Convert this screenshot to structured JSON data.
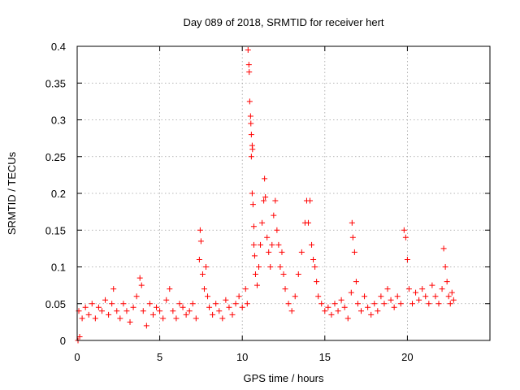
{
  "chart_data": {
    "type": "scatter",
    "title": "Day 089 of 2018, SRMTID for receiver hert",
    "xlabel": "GPS time / hours",
    "ylabel": "SRMTID / TECUs",
    "xlim": [
      0,
      25
    ],
    "ylim": [
      0,
      0.4
    ],
    "xticks": [
      0,
      5,
      10,
      15,
      20
    ],
    "xtick_labels": [
      "0",
      "5",
      "10",
      "15",
      "20"
    ],
    "yticks": [
      0,
      0.05,
      0.1,
      0.15,
      0.2,
      0.25,
      0.3,
      0.35,
      0.4
    ],
    "ytick_labels": [
      "0",
      "0.05",
      "0.1",
      "0.15",
      "0.2",
      "0.25",
      "0.3",
      "0.35",
      "0.4"
    ],
    "grid": true,
    "marker": "+",
    "marker_color": "#ff0000",
    "series": [
      {
        "name": "SRMTID",
        "points": [
          [
            0.05,
            0.0
          ],
          [
            0.1,
            0.04
          ],
          [
            0.15,
            0.005
          ],
          [
            0.3,
            0.03
          ],
          [
            0.5,
            0.045
          ],
          [
            0.7,
            0.035
          ],
          [
            0.9,
            0.05
          ],
          [
            1.1,
            0.03
          ],
          [
            1.3,
            0.045
          ],
          [
            1.5,
            0.04
          ],
          [
            1.7,
            0.055
          ],
          [
            1.9,
            0.035
          ],
          [
            2.1,
            0.05
          ],
          [
            2.2,
            0.07
          ],
          [
            2.4,
            0.04
          ],
          [
            2.6,
            0.03
          ],
          [
            2.8,
            0.05
          ],
          [
            3.0,
            0.04
          ],
          [
            3.2,
            0.025
          ],
          [
            3.4,
            0.045
          ],
          [
            3.6,
            0.06
          ],
          [
            3.8,
            0.085
          ],
          [
            3.9,
            0.075
          ],
          [
            4.0,
            0.04
          ],
          [
            4.2,
            0.02
          ],
          [
            4.4,
            0.05
          ],
          [
            4.6,
            0.035
          ],
          [
            4.8,
            0.045
          ],
          [
            5.0,
            0.04
          ],
          [
            5.2,
            0.03
          ],
          [
            5.4,
            0.055
          ],
          [
            5.6,
            0.07
          ],
          [
            5.8,
            0.04
          ],
          [
            6.0,
            0.03
          ],
          [
            6.2,
            0.05
          ],
          [
            6.4,
            0.045
          ],
          [
            6.6,
            0.035
          ],
          [
            6.8,
            0.04
          ],
          [
            7.0,
            0.05
          ],
          [
            7.2,
            0.03
          ],
          [
            7.4,
            0.11
          ],
          [
            7.45,
            0.15
          ],
          [
            7.5,
            0.135
          ],
          [
            7.6,
            0.09
          ],
          [
            7.7,
            0.07
          ],
          [
            7.8,
            0.1
          ],
          [
            7.9,
            0.06
          ],
          [
            8.0,
            0.045
          ],
          [
            8.2,
            0.035
          ],
          [
            8.4,
            0.05
          ],
          [
            8.6,
            0.04
          ],
          [
            8.8,
            0.03
          ],
          [
            9.0,
            0.055
          ],
          [
            9.2,
            0.045
          ],
          [
            9.4,
            0.035
          ],
          [
            9.6,
            0.05
          ],
          [
            9.8,
            0.06
          ],
          [
            10.0,
            0.045
          ],
          [
            10.2,
            0.07
          ],
          [
            10.3,
            0.05
          ],
          [
            10.35,
            0.395
          ],
          [
            10.4,
            0.375
          ],
          [
            10.42,
            0.365
          ],
          [
            10.45,
            0.325
          ],
          [
            10.5,
            0.305
          ],
          [
            10.52,
            0.295
          ],
          [
            10.55,
            0.28
          ],
          [
            10.6,
            0.265
          ],
          [
            10.62,
            0.26
          ],
          [
            10.55,
            0.25
          ],
          [
            10.6,
            0.2
          ],
          [
            10.65,
            0.185
          ],
          [
            10.7,
            0.155
          ],
          [
            10.7,
            0.13
          ],
          [
            10.75,
            0.115
          ],
          [
            10.8,
            0.09
          ],
          [
            10.9,
            0.075
          ],
          [
            11.0,
            0.1
          ],
          [
            11.1,
            0.13
          ],
          [
            11.2,
            0.16
          ],
          [
            11.3,
            0.19
          ],
          [
            11.35,
            0.22
          ],
          [
            11.4,
            0.195
          ],
          [
            11.5,
            0.14
          ],
          [
            11.6,
            0.12
          ],
          [
            11.7,
            0.1
          ],
          [
            11.8,
            0.13
          ],
          [
            11.9,
            0.17
          ],
          [
            12.0,
            0.19
          ],
          [
            12.1,
            0.15
          ],
          [
            12.2,
            0.13
          ],
          [
            12.3,
            0.1
          ],
          [
            12.4,
            0.12
          ],
          [
            12.5,
            0.09
          ],
          [
            12.6,
            0.07
          ],
          [
            12.8,
            0.05
          ],
          [
            13.0,
            0.04
          ],
          [
            13.2,
            0.06
          ],
          [
            13.4,
            0.09
          ],
          [
            13.6,
            0.12
          ],
          [
            13.8,
            0.16
          ],
          [
            13.9,
            0.19
          ],
          [
            14.0,
            0.16
          ],
          [
            14.1,
            0.19
          ],
          [
            14.2,
            0.13
          ],
          [
            14.3,
            0.11
          ],
          [
            14.4,
            0.1
          ],
          [
            14.5,
            0.08
          ],
          [
            14.6,
            0.06
          ],
          [
            14.8,
            0.05
          ],
          [
            15.0,
            0.04
          ],
          [
            15.2,
            0.045
          ],
          [
            15.4,
            0.035
          ],
          [
            15.6,
            0.05
          ],
          [
            15.8,
            0.04
          ],
          [
            16.0,
            0.055
          ],
          [
            16.2,
            0.045
          ],
          [
            16.4,
            0.03
          ],
          [
            16.6,
            0.065
          ],
          [
            16.65,
            0.16
          ],
          [
            16.7,
            0.14
          ],
          [
            16.8,
            0.12
          ],
          [
            16.9,
            0.08
          ],
          [
            17.0,
            0.05
          ],
          [
            17.2,
            0.04
          ],
          [
            17.4,
            0.06
          ],
          [
            17.6,
            0.045
          ],
          [
            17.8,
            0.035
          ],
          [
            18.0,
            0.05
          ],
          [
            18.2,
            0.04
          ],
          [
            18.4,
            0.06
          ],
          [
            18.6,
            0.05
          ],
          [
            18.8,
            0.07
          ],
          [
            19.0,
            0.055
          ],
          [
            19.2,
            0.045
          ],
          [
            19.4,
            0.06
          ],
          [
            19.6,
            0.05
          ],
          [
            19.8,
            0.15
          ],
          [
            19.9,
            0.14
          ],
          [
            20.0,
            0.11
          ],
          [
            20.1,
            0.07
          ],
          [
            20.3,
            0.05
          ],
          [
            20.5,
            0.065
          ],
          [
            20.7,
            0.055
          ],
          [
            20.9,
            0.07
          ],
          [
            21.1,
            0.06
          ],
          [
            21.3,
            0.05
          ],
          [
            21.5,
            0.075
          ],
          [
            21.7,
            0.06
          ],
          [
            21.9,
            0.05
          ],
          [
            22.1,
            0.07
          ],
          [
            22.2,
            0.125
          ],
          [
            22.3,
            0.1
          ],
          [
            22.4,
            0.08
          ],
          [
            22.5,
            0.06
          ],
          [
            22.6,
            0.05
          ],
          [
            22.7,
            0.065
          ],
          [
            22.8,
            0.055
          ]
        ]
      }
    ]
  }
}
